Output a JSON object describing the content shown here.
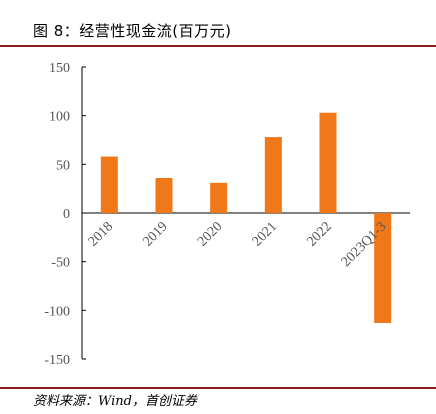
{
  "header": {
    "title": "图 8：经营性现金流(百万元)"
  },
  "footer": {
    "source": "资料来源：Wind，首创证券"
  },
  "chart_data": {
    "type": "bar",
    "title": "图 8：经营性现金流(百万元)",
    "categories": [
      "2018",
      "2019",
      "2020",
      "2021",
      "2022",
      "2023Q1-3"
    ],
    "values": [
      58,
      36,
      31,
      78,
      103,
      -113
    ],
    "ylim": [
      -150,
      150
    ],
    "yticks": [
      150,
      100,
      50,
      0,
      -50,
      -100,
      -150
    ],
    "ytick_labels": [
      "150",
      "100",
      "50",
      "0",
      "-50",
      "-100",
      "-150"
    ],
    "xlabel": "",
    "ylabel": "",
    "bar_color": "#F07818",
    "grid": false,
    "legend": "none"
  }
}
